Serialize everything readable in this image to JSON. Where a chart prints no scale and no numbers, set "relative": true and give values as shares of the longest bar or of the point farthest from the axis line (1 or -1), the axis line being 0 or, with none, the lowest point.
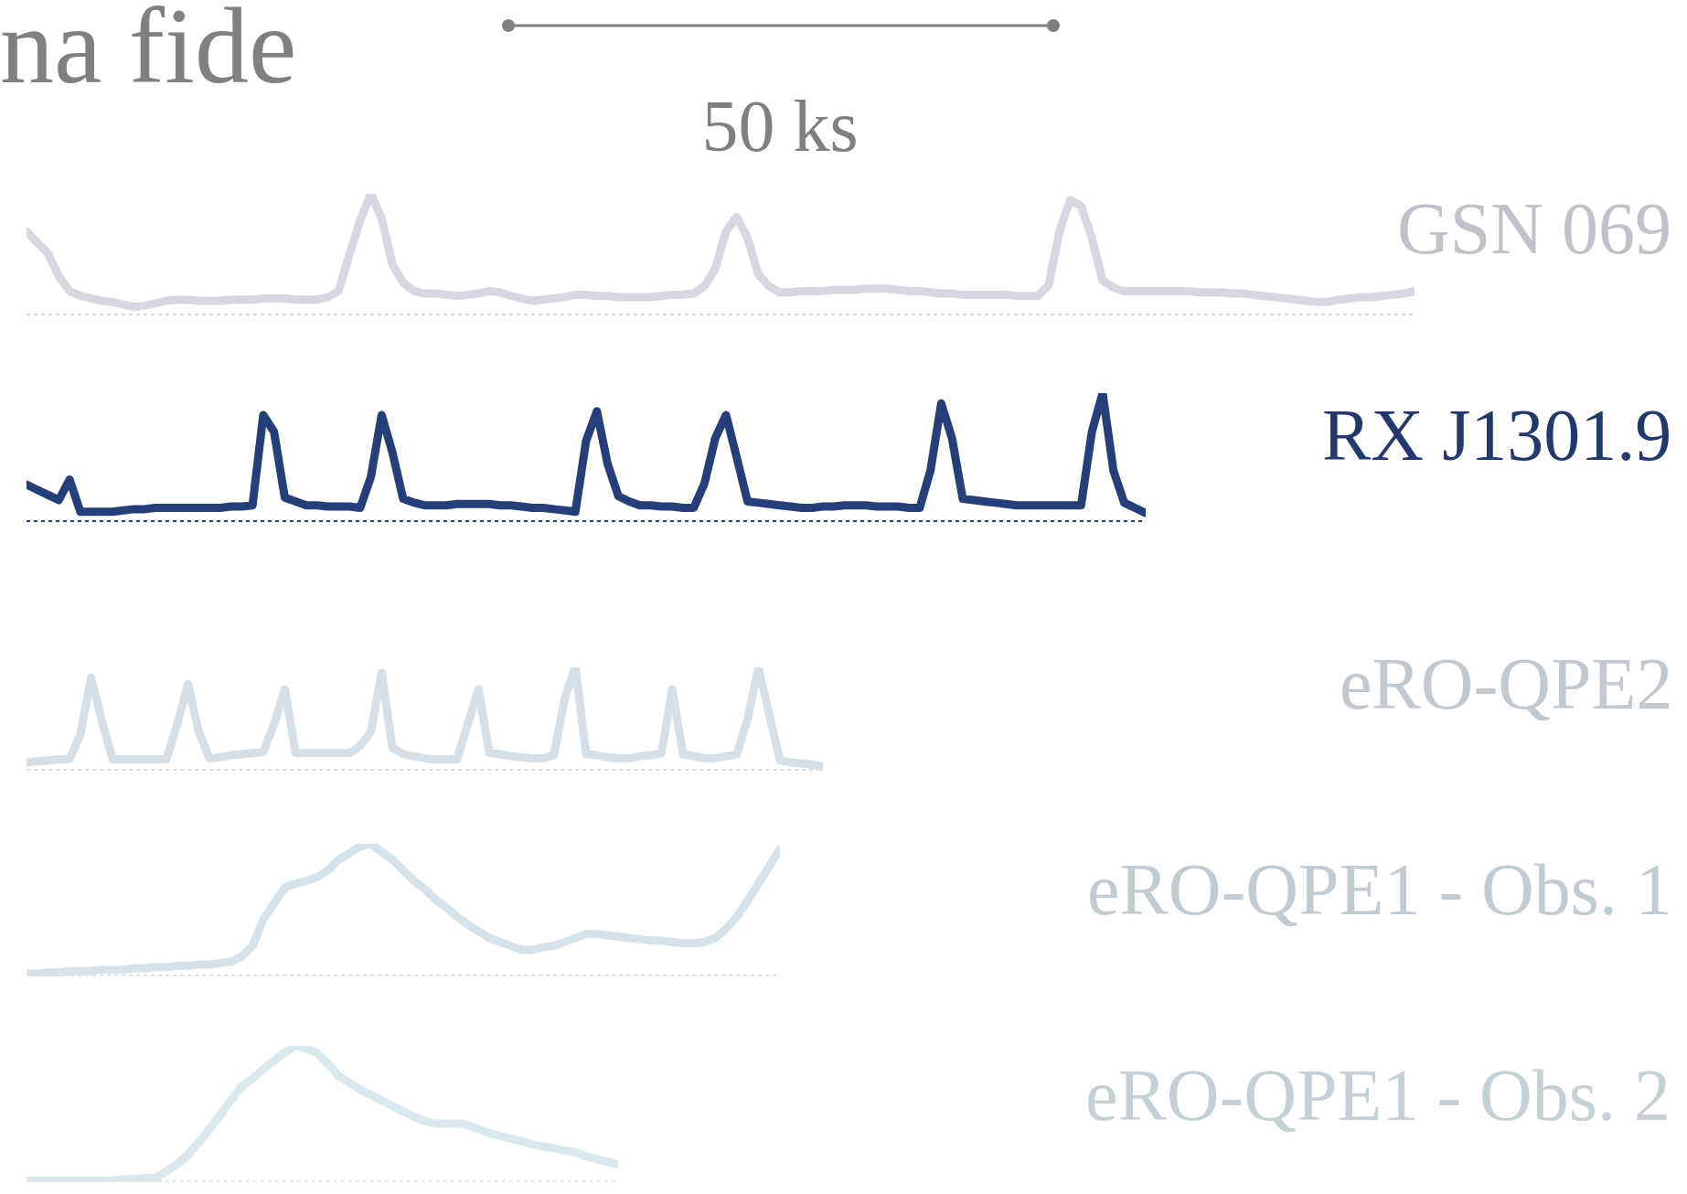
{
  "chart_data": [
    {
      "type": "line",
      "title": "na fide",
      "annotations": [
        "50 ks"
      ],
      "relative": true,
      "categories": [
        null,
        null,
        null,
        null,
        null,
        null,
        null,
        null,
        null,
        null,
        null,
        null,
        null,
        null,
        null,
        null,
        null,
        null,
        null,
        null,
        null,
        null,
        null,
        null,
        null,
        null,
        null,
        null,
        null,
        null,
        null,
        null,
        null,
        null,
        null,
        null,
        null,
        null,
        null,
        null,
        null,
        null,
        null,
        null,
        null,
        null,
        null,
        null,
        null,
        null,
        null,
        null,
        null,
        null,
        null,
        null,
        null,
        null,
        null,
        null,
        null,
        null,
        null,
        null,
        null,
        null,
        null,
        null,
        null,
        null,
        null,
        null,
        null,
        null,
        null,
        null,
        null,
        null,
        null,
        null,
        null,
        null,
        null,
        null,
        null,
        null,
        null,
        null,
        null,
        null,
        null,
        null,
        null,
        null,
        null,
        null,
        null,
        null,
        null,
        null,
        null,
        null,
        null,
        null,
        null,
        null,
        null,
        null,
        null,
        null,
        null,
        null,
        null,
        null,
        null,
        null,
        null,
        null,
        null,
        null,
        null,
        null,
        null,
        null,
        null,
        null,
        null,
        null,
        null,
        null
      ],
      "series": [
        {
          "name": "GSN 069",
          "color": "#d8d6e0",
          "values": [
            0.69,
            0.6,
            0.51,
            0.32,
            0.2,
            0.16,
            0.14,
            0.12,
            0.11,
            0.09,
            0.07,
            0.08,
            0.1,
            0.12,
            0.13,
            0.13,
            0.12,
            0.12,
            0.12,
            0.13,
            0.13,
            0.13,
            0.14,
            0.14,
            0.14,
            0.13,
            0.13,
            0.13,
            0.15,
            0.2,
            0.5,
            0.78,
            1.0,
            0.8,
            0.42,
            0.27,
            0.2,
            0.18,
            0.18,
            0.17,
            0.16,
            0.17,
            0.18,
            0.2,
            0.19,
            0.16,
            0.14,
            0.12,
            0.13,
            0.14,
            0.15,
            0.17,
            0.17,
            0.16,
            0.16,
            0.15,
            0.15,
            0.15,
            0.15,
            0.16,
            0.17,
            0.17,
            0.18,
            0.24,
            0.38,
            0.69,
            0.81,
            0.64,
            0.34,
            0.24,
            0.19,
            0.19,
            0.2,
            0.2,
            0.2,
            0.21,
            0.21,
            0.21,
            0.22,
            0.22,
            0.22,
            0.21,
            0.2,
            0.2,
            0.19,
            0.18,
            0.18,
            0.17,
            0.17,
            0.17,
            0.17,
            0.17,
            0.16,
            0.16,
            0.16,
            0.25,
            0.69,
            0.95,
            0.9,
            0.64,
            0.29,
            0.23,
            0.2,
            0.2,
            0.2,
            0.2,
            0.2,
            0.2,
            0.2,
            0.19,
            0.19,
            0.19,
            0.18,
            0.18,
            0.17,
            0.16,
            0.15,
            0.14,
            0.13,
            0.12,
            0.11,
            0.11,
            0.13,
            0.14,
            0.15,
            0.15,
            0.16,
            0.17,
            0.18,
            0.2
          ]
        }
      ]
    },
    {
      "type": "line",
      "relative": true,
      "categories": [
        null,
        null,
        null,
        null,
        null,
        null,
        null,
        null,
        null,
        null,
        null,
        null,
        null,
        null,
        null,
        null,
        null,
        null,
        null,
        null,
        null,
        null,
        null,
        null,
        null,
        null,
        null,
        null,
        null,
        null,
        null,
        null,
        null,
        null,
        null,
        null,
        null,
        null,
        null,
        null,
        null,
        null,
        null,
        null,
        null,
        null,
        null,
        null,
        null,
        null,
        null,
        null,
        null,
        null,
        null,
        null,
        null,
        null,
        null,
        null,
        null,
        null,
        null,
        null,
        null,
        null,
        null,
        null,
        null,
        null,
        null,
        null,
        null,
        null,
        null,
        null,
        null,
        null,
        null,
        null,
        null,
        null,
        null,
        null,
        null,
        null,
        null,
        null,
        null,
        null,
        null,
        null,
        null,
        null,
        null,
        null,
        null,
        null,
        null,
        null,
        null,
        null,
        null,
        null,
        null
      ],
      "series": [
        {
          "name": "RX J1301.9",
          "color": "#253f7b",
          "values": [
            0.29,
            0.25,
            0.21,
            0.17,
            0.33,
            0.08,
            0.08,
            0.08,
            0.08,
            0.09,
            0.1,
            0.1,
            0.11,
            0.11,
            0.11,
            0.11,
            0.11,
            0.11,
            0.11,
            0.12,
            0.12,
            0.13,
            0.83,
            0.7,
            0.19,
            0.16,
            0.13,
            0.13,
            0.12,
            0.12,
            0.12,
            0.11,
            0.35,
            0.83,
            0.54,
            0.18,
            0.15,
            0.13,
            0.13,
            0.13,
            0.14,
            0.14,
            0.14,
            0.14,
            0.13,
            0.13,
            0.12,
            0.11,
            0.11,
            0.1,
            0.09,
            0.08,
            0.63,
            0.86,
            0.45,
            0.2,
            0.16,
            0.13,
            0.13,
            0.12,
            0.12,
            0.11,
            0.11,
            0.3,
            0.65,
            0.83,
            0.5,
            0.16,
            0.15,
            0.14,
            0.13,
            0.12,
            0.11,
            0.11,
            0.12,
            0.12,
            0.13,
            0.13,
            0.13,
            0.12,
            0.12,
            0.12,
            0.11,
            0.11,
            0.4,
            0.92,
            0.65,
            0.18,
            0.17,
            0.16,
            0.15,
            0.14,
            0.13,
            0.13,
            0.13,
            0.13,
            0.13,
            0.13,
            0.13,
            0.7,
            1.0,
            0.4,
            0.15,
            0.11,
            0.07
          ]
        }
      ]
    },
    {
      "type": "line",
      "relative": true,
      "categories": [
        null,
        null,
        null,
        null,
        null,
        null,
        null,
        null,
        null,
        null,
        null,
        null,
        null,
        null,
        null,
        null,
        null,
        null,
        null,
        null,
        null,
        null,
        null,
        null,
        null,
        null,
        null,
        null,
        null,
        null,
        null,
        null,
        null,
        null,
        null,
        null,
        null,
        null,
        null,
        null,
        null,
        null,
        null,
        null,
        null,
        null,
        null,
        null,
        null,
        null,
        null,
        null,
        null,
        null,
        null,
        null,
        null,
        null,
        null,
        null,
        null,
        null,
        null,
        null,
        null,
        null,
        null,
        null,
        null,
        null,
        null,
        null,
        null,
        null,
        null
      ],
      "series": [
        {
          "name": "eRO-QPE2",
          "color": "#d6dfe6",
          "values": [
            0.08,
            0.09,
            0.1,
            0.11,
            0.11,
            0.35,
            0.9,
            0.48,
            0.11,
            0.11,
            0.11,
            0.11,
            0.11,
            0.11,
            0.45,
            0.84,
            0.38,
            0.12,
            0.13,
            0.15,
            0.16,
            0.17,
            0.18,
            0.45,
            0.79,
            0.17,
            0.17,
            0.17,
            0.17,
            0.17,
            0.17,
            0.24,
            0.38,
            0.95,
            0.22,
            0.16,
            0.14,
            0.12,
            0.11,
            0.11,
            0.11,
            0.45,
            0.79,
            0.17,
            0.16,
            0.14,
            0.13,
            0.12,
            0.12,
            0.15,
            0.7,
            1.0,
            0.16,
            0.15,
            0.13,
            0.12,
            0.12,
            0.14,
            0.15,
            0.17,
            0.79,
            0.16,
            0.14,
            0.12,
            0.12,
            0.14,
            0.16,
            0.5,
            1.0,
            0.55,
            0.1,
            0.08,
            0.07,
            0.06,
            0.04
          ]
        }
      ]
    },
    {
      "type": "line",
      "relative": true,
      "categories": [
        null,
        null,
        null,
        null,
        null,
        null,
        null,
        null,
        null,
        null,
        null,
        null,
        null,
        null,
        null,
        null,
        null,
        null,
        null,
        null,
        null,
        null,
        null,
        null,
        null,
        null,
        null,
        null,
        null,
        null,
        null,
        null,
        null,
        null,
        null,
        null,
        null,
        null,
        null,
        null,
        null,
        null,
        null,
        null,
        null,
        null,
        null,
        null,
        null,
        null,
        null,
        null,
        null,
        null,
        null,
        null,
        null,
        null,
        null,
        null,
        null,
        null,
        null,
        null,
        null,
        null,
        null,
        null,
        null,
        null,
        null
      ],
      "series": [
        {
          "name": "eRO-QPE1 - Obs. 1",
          "color": "#d6e2e9",
          "values": [
            0.02,
            0.02,
            0.03,
            0.03,
            0.04,
            0.04,
            0.04,
            0.05,
            0.05,
            0.05,
            0.06,
            0.06,
            0.07,
            0.07,
            0.08,
            0.08,
            0.09,
            0.09,
            0.1,
            0.11,
            0.15,
            0.23,
            0.43,
            0.55,
            0.67,
            0.7,
            0.72,
            0.75,
            0.8,
            0.88,
            0.93,
            0.98,
            1.0,
            0.94,
            0.88,
            0.8,
            0.72,
            0.66,
            0.58,
            0.52,
            0.45,
            0.39,
            0.34,
            0.29,
            0.26,
            0.23,
            0.2,
            0.2,
            0.22,
            0.23,
            0.26,
            0.29,
            0.32,
            0.32,
            0.31,
            0.3,
            0.29,
            0.28,
            0.27,
            0.27,
            0.26,
            0.25,
            0.25,
            0.26,
            0.29,
            0.36,
            0.45,
            0.57,
            0.7,
            0.83,
            0.96
          ]
        }
      ]
    },
    {
      "type": "line",
      "relative": true,
      "categories": [
        null,
        null,
        null,
        null,
        null,
        null,
        null,
        null,
        null,
        null,
        null,
        null,
        null,
        null,
        null,
        null,
        null,
        null,
        null,
        null,
        null,
        null,
        null,
        null,
        null,
        null,
        null,
        null,
        null,
        null,
        null,
        null,
        null,
        null,
        null,
        null,
        null,
        null,
        null,
        null,
        null,
        null,
        null,
        null,
        null,
        null,
        null,
        null,
        null,
        null,
        null,
        null,
        null,
        null,
        null,
        null
      ],
      "series": [
        {
          "name": "eRO-QPE1 - Obs. 2",
          "color": "#d9e8ec",
          "values": [
            0.01,
            0.01,
            0.01,
            0.01,
            0.01,
            0.01,
            0.01,
            0.01,
            0.01,
            0.02,
            0.02,
            0.03,
            0.03,
            0.08,
            0.13,
            0.2,
            0.29,
            0.39,
            0.49,
            0.6,
            0.7,
            0.76,
            0.83,
            0.89,
            0.95,
            1.0,
            0.98,
            0.95,
            0.87,
            0.78,
            0.73,
            0.68,
            0.64,
            0.6,
            0.56,
            0.52,
            0.48,
            0.45,
            0.43,
            0.43,
            0.43,
            0.42,
            0.39,
            0.36,
            0.34,
            0.32,
            0.3,
            0.28,
            0.26,
            0.25,
            0.23,
            0.22,
            0.19,
            0.17,
            0.15,
            0.13
          ]
        }
      ]
    }
  ]
}
